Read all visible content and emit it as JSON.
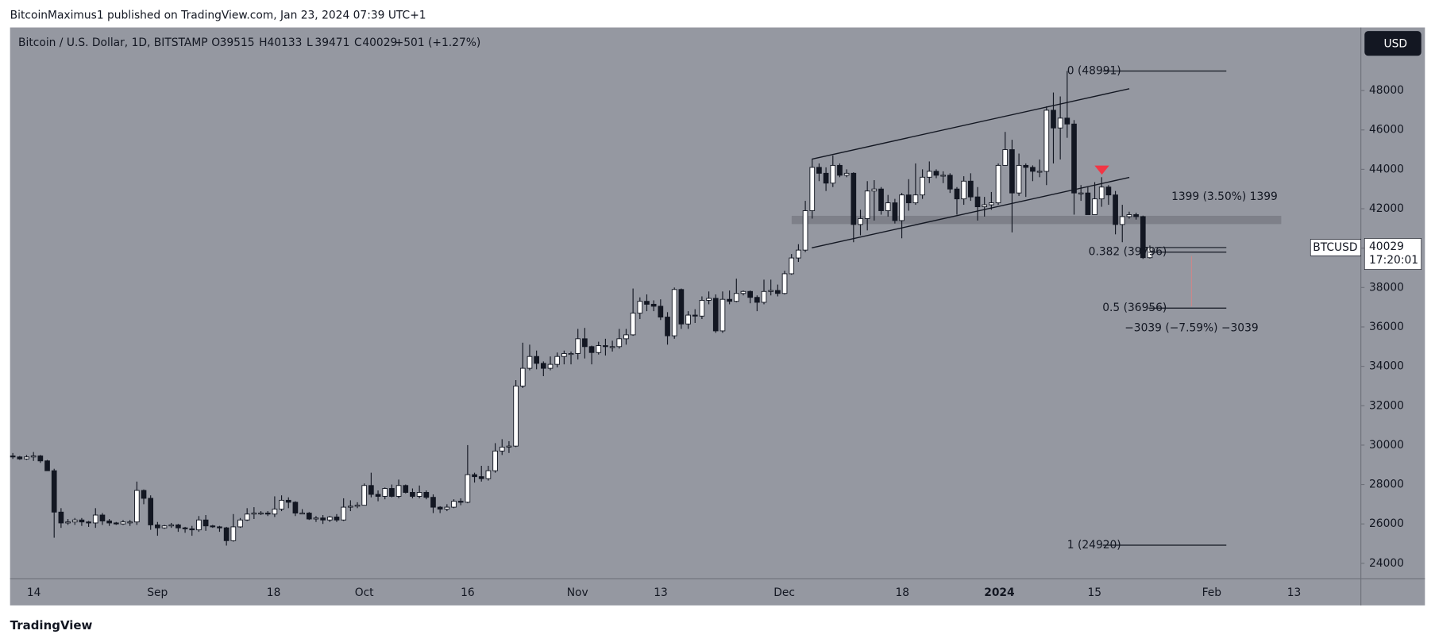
{
  "header": "BitcoinMaximus1 published on TradingView.com, Jan 23, 2024 07:39 UTC+1",
  "footer": "TradingView",
  "currency_button": "USD",
  "chart_data": {
    "type": "candlestick",
    "legend": {
      "symbol": "Bitcoin / U.S. Dollar, 1D, BITSTAMP",
      "labels": [
        "O",
        "H",
        "L",
        "C"
      ],
      "change": "+501 (+1.27%)"
    },
    "price_tag": {
      "name": "BTCUSD",
      "countdown": "17:20:01"
    },
    "ylim": [
      22000,
      51000
    ],
    "yticks": [
      24000,
      26000,
      28000,
      30000,
      32000,
      34000,
      36000,
      38000,
      40000,
      42000,
      44000,
      46000,
      48000
    ],
    "grid": false,
    "up_color": "#ffffff",
    "down_color": "#131722",
    "xticks": [
      "14",
      "Sep",
      "18",
      "Oct",
      "16",
      "Nov",
      "13",
      "Dec",
      "18",
      "2024",
      "15",
      "Feb",
      "13"
    ],
    "fib": [
      {
        "label": "0 (48991)",
        "value": 48991
      },
      {
        "label": "0.382 (39796)",
        "value": 39796
      },
      {
        "label": "0.5 (36956)",
        "value": 36956
      },
      {
        "label": "1 (24920)",
        "value": 24920
      }
    ],
    "measures": [
      "1399 (3.50%) 1399",
      "−3039 (−7.59%) −3039"
    ],
    "ohlc": [
      [
        29450,
        29600,
        29300,
        29400
      ],
      [
        29400,
        29450,
        29250,
        29300
      ],
      [
        29300,
        29500,
        29250,
        29400
      ],
      [
        29400,
        29650,
        29200,
        29450
      ],
      [
        29450,
        29500,
        29100,
        29200
      ],
      [
        29200,
        29250,
        28700,
        28700
      ],
      [
        28700,
        28800,
        25300,
        26600
      ],
      [
        26600,
        26800,
        25800,
        26050
      ],
      [
        26050,
        26250,
        25950,
        26100
      ],
      [
        26100,
        26300,
        25950,
        26200
      ],
      [
        26200,
        26300,
        25900,
        26100
      ],
      [
        26100,
        26150,
        25850,
        26050
      ],
      [
        26050,
        26800,
        25800,
        26450
      ],
      [
        26450,
        26550,
        25950,
        26150
      ],
      [
        26150,
        26250,
        25900,
        26050
      ],
      [
        26050,
        26100,
        25950,
        26000
      ],
      [
        26000,
        26200,
        25950,
        26100
      ],
      [
        26100,
        26200,
        25900,
        26100
      ],
      [
        26100,
        28150,
        25950,
        27700
      ],
      [
        27700,
        27750,
        27000,
        27300
      ],
      [
        27300,
        27450,
        25700,
        25950
      ],
      [
        25950,
        26100,
        25400,
        25800
      ],
      [
        25800,
        25950,
        25750,
        25900
      ],
      [
        25900,
        26050,
        25800,
        25950
      ],
      [
        25950,
        26000,
        25600,
        25800
      ],
      [
        25800,
        25850,
        25550,
        25750
      ],
      [
        25750,
        25900,
        25400,
        25700
      ],
      [
        25700,
        26400,
        25600,
        26200
      ],
      [
        26200,
        26450,
        25650,
        25900
      ],
      [
        25900,
        25950,
        25800,
        25850
      ],
      [
        25850,
        25900,
        25600,
        25800
      ],
      [
        25800,
        25850,
        24900,
        25150
      ],
      [
        25150,
        26500,
        25100,
        25850
      ],
      [
        25850,
        26300,
        25800,
        26200
      ],
      [
        26200,
        26800,
        26150,
        26500
      ],
      [
        26500,
        26850,
        26250,
        26550
      ],
      [
        26550,
        26650,
        26450,
        26550
      ],
      [
        26550,
        26650,
        26400,
        26500
      ],
      [
        26500,
        27400,
        26350,
        26750
      ],
      [
        26750,
        27450,
        26650,
        27200
      ],
      [
        27200,
        27350,
        26800,
        27100
      ],
      [
        27100,
        27150,
        26400,
        26550
      ],
      [
        26550,
        26750,
        26500,
        26550
      ],
      [
        26550,
        26600,
        26200,
        26250
      ],
      [
        26250,
        26400,
        26100,
        26300
      ],
      [
        26300,
        26450,
        26000,
        26200
      ],
      [
        26200,
        26400,
        26100,
        26350
      ],
      [
        26350,
        26500,
        26100,
        26200
      ],
      [
        26200,
        27300,
        26150,
        26850
      ],
      [
        26850,
        27200,
        26650,
        26900
      ],
      [
        26900,
        27100,
        26800,
        26950
      ],
      [
        26950,
        28050,
        26950,
        27950
      ],
      [
        27950,
        28600,
        27350,
        27500
      ],
      [
        27500,
        27700,
        27150,
        27400
      ],
      [
        27400,
        27850,
        27250,
        27800
      ],
      [
        27800,
        28000,
        27350,
        27400
      ],
      [
        27400,
        28250,
        27300,
        27950
      ],
      [
        27950,
        28000,
        27550,
        27600
      ],
      [
        27600,
        27800,
        27300,
        27400
      ],
      [
        27400,
        27950,
        27300,
        27600
      ],
      [
        27600,
        27700,
        27250,
        27350
      ],
      [
        27350,
        27500,
        26550,
        26850
      ],
      [
        26850,
        26900,
        26550,
        26750
      ],
      [
        26750,
        27000,
        26650,
        26850
      ],
      [
        26850,
        27250,
        26800,
        27150
      ],
      [
        27150,
        27300,
        26950,
        27100
      ],
      [
        27100,
        30000,
        27050,
        28500
      ],
      [
        28500,
        28600,
        28100,
        28400
      ],
      [
        28400,
        28950,
        28150,
        28300
      ],
      [
        28300,
        28950,
        28200,
        28700
      ],
      [
        28700,
        30100,
        28600,
        29700
      ],
      [
        29700,
        30300,
        29500,
        29900
      ],
      [
        29900,
        30200,
        29600,
        29950
      ],
      [
        29950,
        33300,
        29900,
        33000
      ],
      [
        33000,
        35200,
        32900,
        33900
      ],
      [
        33900,
        35100,
        33800,
        34500
      ],
      [
        34500,
        34800,
        33850,
        34150
      ],
      [
        34150,
        34250,
        33500,
        33900
      ],
      [
        33900,
        34500,
        33800,
        34100
      ],
      [
        34100,
        34700,
        33950,
        34500
      ],
      [
        34500,
        34800,
        34100,
        34650
      ],
      [
        34650,
        34750,
        34100,
        34650
      ],
      [
        34650,
        35900,
        34350,
        35400
      ],
      [
        35400,
        35950,
        34400,
        35000
      ],
      [
        35000,
        35050,
        34100,
        34700
      ],
      [
        34700,
        35250,
        34600,
        35050
      ],
      [
        35050,
        35400,
        34550,
        35000
      ],
      [
        35000,
        35300,
        34750,
        35000
      ],
      [
        35000,
        35900,
        34900,
        35400
      ],
      [
        35400,
        35900,
        35100,
        35600
      ],
      [
        35600,
        37950,
        35550,
        36700
      ],
      [
        36700,
        37500,
        36400,
        37300
      ],
      [
        37300,
        37650,
        36800,
        37150
      ],
      [
        37150,
        37350,
        36800,
        37050
      ],
      [
        37050,
        37400,
        36350,
        36500
      ],
      [
        36500,
        36750,
        35100,
        35550
      ],
      [
        35550,
        38000,
        35400,
        37900
      ],
      [
        37900,
        37950,
        35900,
        36150
      ],
      [
        36150,
        36800,
        35900,
        36600
      ],
      [
        36600,
        36900,
        36200,
        36550
      ],
      [
        36550,
        37550,
        36400,
        37350
      ],
      [
        37350,
        37800,
        37150,
        37450
      ],
      [
        37450,
        37650,
        35700,
        35800
      ],
      [
        35800,
        37800,
        35700,
        37400
      ],
      [
        37400,
        37850,
        37150,
        37300
      ],
      [
        37300,
        38450,
        37250,
        37700
      ],
      [
        37700,
        37850,
        37600,
        37800
      ],
      [
        37800,
        37850,
        37200,
        37500
      ],
      [
        37500,
        37600,
        36800,
        37250
      ],
      [
        37250,
        38400,
        37150,
        37800
      ],
      [
        37800,
        38400,
        37600,
        37850
      ],
      [
        37850,
        38150,
        37550,
        37700
      ],
      [
        37700,
        38850,
        37650,
        38700
      ],
      [
        38700,
        39700,
        38650,
        39500
      ],
      [
        39500,
        40200,
        39300,
        39900
      ],
      [
        39900,
        42400,
        39800,
        41900
      ],
      [
        41900,
        44500,
        41500,
        44100
      ],
      [
        44100,
        44300,
        43400,
        43800
      ],
      [
        43800,
        44100,
        42900,
        43300
      ],
      [
        43300,
        44700,
        43100,
        44200
      ],
      [
        44200,
        44300,
        43600,
        43700
      ],
      [
        43700,
        44000,
        43600,
        43800
      ],
      [
        43800,
        43850,
        40300,
        41200
      ],
      [
        41200,
        41950,
        40650,
        41500
      ],
      [
        41500,
        43400,
        40900,
        42900
      ],
      [
        42900,
        43450,
        41400,
        43000
      ],
      [
        43000,
        43100,
        41700,
        41900
      ],
      [
        41900,
        42700,
        41600,
        42300
      ],
      [
        42300,
        42500,
        41250,
        41400
      ],
      [
        41400,
        42800,
        40500,
        42700
      ],
      [
        42700,
        43500,
        41900,
        42300
      ],
      [
        42300,
        44300,
        42200,
        42700
      ],
      [
        42700,
        44000,
        42500,
        43600
      ],
      [
        43600,
        44400,
        43300,
        43900
      ],
      [
        43900,
        44000,
        43550,
        43700
      ],
      [
        43700,
        43900,
        43300,
        43700
      ],
      [
        43700,
        43800,
        42800,
        43000
      ],
      [
        43000,
        43100,
        41700,
        42500
      ],
      [
        42500,
        43650,
        42200,
        43400
      ],
      [
        43400,
        43800,
        42400,
        42600
      ],
      [
        42600,
        43100,
        41400,
        42100
      ],
      [
        42100,
        42600,
        41600,
        42200
      ],
      [
        42200,
        42850,
        41950,
        42300
      ],
      [
        42300,
        44300,
        42200,
        44200
      ],
      [
        44200,
        45900,
        44200,
        45000
      ],
      [
        45000,
        45500,
        40800,
        42800
      ],
      [
        42800,
        44800,
        42650,
        44200
      ],
      [
        44200,
        44300,
        42600,
        44100
      ],
      [
        44100,
        44200,
        43400,
        43900
      ],
      [
        43900,
        44500,
        43600,
        43900
      ],
      [
        43900,
        47200,
        43200,
        47000
      ],
      [
        47000,
        47900,
        44300,
        46100
      ],
      [
        46100,
        47700,
        44500,
        46600
      ],
      [
        46600,
        48991,
        45600,
        46300
      ],
      [
        46300,
        46500,
        41700,
        42800
      ],
      [
        42800,
        43200,
        42400,
        42800
      ],
      [
        42800,
        43100,
        41700,
        41700
      ],
      [
        41700,
        43350,
        41700,
        42500
      ],
      [
        42500,
        43600,
        42100,
        43100
      ],
      [
        43100,
        43200,
        42200,
        42700
      ],
      [
        42700,
        42900,
        40700,
        41200
      ],
      [
        41200,
        42200,
        40300,
        41600
      ],
      [
        41600,
        41850,
        41500,
        41700
      ],
      [
        41700,
        41800,
        41450,
        41600
      ],
      [
        41600,
        41650,
        39450,
        39515
      ],
      [
        39515,
        40133,
        39471,
        40029
      ]
    ]
  }
}
